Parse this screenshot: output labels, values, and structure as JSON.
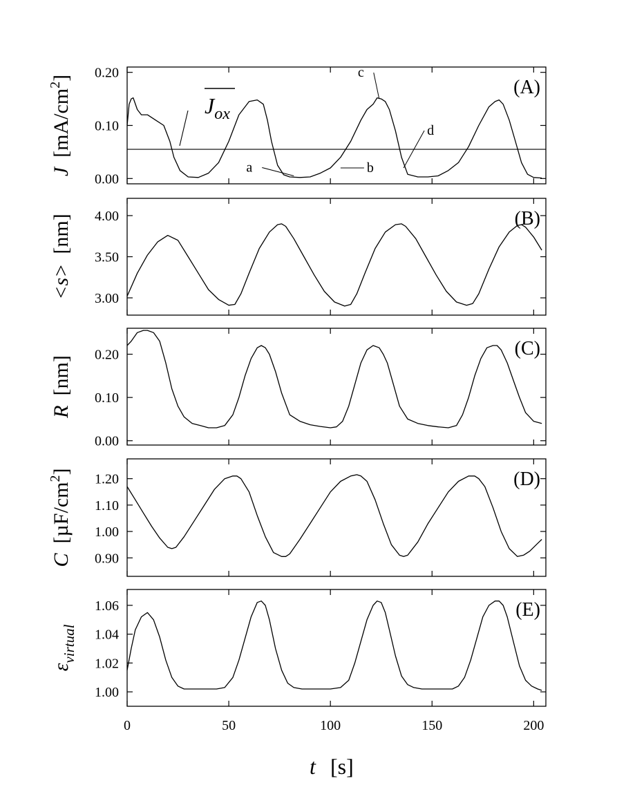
{
  "chart_data": [
    {
      "type": "line",
      "panel_label": "(A)",
      "ylabel_symbol": "J",
      "ylabel_unit": "[mA/cm",
      "ylabel_sup": "2",
      "ylabel_close": "]",
      "ylim": [
        -0.01,
        0.21
      ],
      "yticks": [
        0.0,
        0.1,
        0.2
      ],
      "ytick_labels": [
        "0.00",
        "0.10",
        "0.20"
      ],
      "reference_line": {
        "y": 0.055,
        "label_main": "J",
        "label_sub": "ox"
      },
      "annotations": [
        {
          "text": "a",
          "x": 82,
          "y": 0.005
        },
        {
          "text": "b",
          "x": 105,
          "y": 0.02
        },
        {
          "text": "c",
          "x": 124,
          "y": 0.15
        },
        {
          "text": "d",
          "x": 136,
          "y": 0.02
        }
      ],
      "series": [
        {
          "x": [
            0,
            1,
            2,
            3,
            5,
            7,
            10,
            14,
            18,
            21,
            23,
            26,
            30,
            35,
            40,
            45,
            50,
            55,
            60,
            64,
            67,
            69,
            71,
            74,
            77,
            80,
            85,
            90,
            95,
            100,
            105,
            110,
            115,
            118,
            121,
            123,
            125,
            127,
            129,
            132,
            135,
            138,
            143,
            148,
            153,
            158,
            163,
            168,
            173,
            178,
            181,
            183,
            185,
            188,
            191,
            194,
            197,
            200,
            204
          ],
          "y": [
            0.1,
            0.14,
            0.15,
            0.152,
            0.13,
            0.12,
            0.12,
            0.11,
            0.1,
            0.07,
            0.04,
            0.015,
            0.003,
            0.002,
            0.01,
            0.03,
            0.07,
            0.12,
            0.145,
            0.148,
            0.14,
            0.11,
            0.07,
            0.025,
            0.007,
            0.003,
            0.002,
            0.003,
            0.01,
            0.02,
            0.04,
            0.07,
            0.11,
            0.13,
            0.14,
            0.152,
            0.15,
            0.145,
            0.13,
            0.09,
            0.04,
            0.008,
            0.003,
            0.003,
            0.005,
            0.015,
            0.03,
            0.06,
            0.1,
            0.135,
            0.145,
            0.148,
            0.14,
            0.11,
            0.07,
            0.03,
            0.008,
            0.002,
            0.001
          ]
        }
      ]
    },
    {
      "type": "line",
      "panel_label": "(B)",
      "ylabel_symbol": "<s>",
      "ylabel_unit": "[nm]",
      "ylim": [
        2.79,
        4.21
      ],
      "yticks": [
        3.0,
        3.5,
        4.0
      ],
      "ytick_labels": [
        "3.00",
        "3.50",
        "4.00"
      ],
      "series": [
        {
          "x": [
            0,
            5,
            10,
            15,
            20,
            25,
            30,
            35,
            40,
            45,
            50,
            53,
            56,
            60,
            65,
            70,
            74,
            76,
            78,
            82,
            87,
            92,
            97,
            102,
            107,
            110,
            113,
            117,
            122,
            127,
            132,
            135,
            137,
            142,
            147,
            152,
            157,
            162,
            167,
            170,
            173,
            178,
            183,
            188,
            192,
            194,
            196,
            200,
            204
          ],
          "y": [
            3.02,
            3.3,
            3.52,
            3.68,
            3.76,
            3.7,
            3.5,
            3.3,
            3.1,
            2.98,
            2.91,
            2.92,
            3.05,
            3.3,
            3.6,
            3.8,
            3.89,
            3.9,
            3.87,
            3.72,
            3.5,
            3.28,
            3.08,
            2.95,
            2.9,
            2.92,
            3.05,
            3.3,
            3.6,
            3.8,
            3.89,
            3.9,
            3.87,
            3.72,
            3.5,
            3.28,
            3.08,
            2.95,
            2.91,
            2.93,
            3.05,
            3.35,
            3.62,
            3.8,
            3.88,
            3.89,
            3.86,
            3.74,
            3.58
          ]
        }
      ]
    },
    {
      "type": "line",
      "panel_label": "(C)",
      "ylabel_symbol": "R",
      "ylabel_unit": "[nm]",
      "ylim": [
        -0.01,
        0.26
      ],
      "yticks": [
        0.0,
        0.1,
        0.2
      ],
      "ytick_labels": [
        "0.00",
        "0.10",
        "0.20"
      ],
      "series": [
        {
          "x": [
            0,
            2,
            5,
            8,
            10,
            13,
            16,
            19,
            22,
            25,
            28,
            32,
            36,
            40,
            44,
            48,
            52,
            55,
            58,
            61,
            64,
            66,
            68,
            70,
            73,
            76,
            80,
            85,
            90,
            95,
            100,
            103,
            106,
            109,
            112,
            115,
            118,
            121,
            124,
            126,
            128,
            131,
            134,
            138,
            143,
            148,
            153,
            158,
            162,
            165,
            168,
            171,
            174,
            177,
            180,
            182,
            184,
            187,
            190,
            193,
            196,
            200,
            204
          ],
          "y": [
            0.22,
            0.23,
            0.25,
            0.255,
            0.255,
            0.25,
            0.23,
            0.18,
            0.12,
            0.08,
            0.055,
            0.04,
            0.035,
            0.03,
            0.03,
            0.035,
            0.06,
            0.1,
            0.15,
            0.19,
            0.215,
            0.22,
            0.215,
            0.2,
            0.16,
            0.11,
            0.06,
            0.045,
            0.037,
            0.033,
            0.03,
            0.032,
            0.045,
            0.08,
            0.13,
            0.18,
            0.21,
            0.22,
            0.215,
            0.2,
            0.18,
            0.13,
            0.08,
            0.05,
            0.04,
            0.035,
            0.032,
            0.03,
            0.035,
            0.06,
            0.1,
            0.15,
            0.19,
            0.215,
            0.22,
            0.22,
            0.21,
            0.18,
            0.14,
            0.1,
            0.065,
            0.045,
            0.04
          ]
        }
      ]
    },
    {
      "type": "line",
      "panel_label": "(D)",
      "ylabel_symbol": "C",
      "ylabel_unit": "[µF/cm",
      "ylabel_sup": "2",
      "ylabel_close": "]",
      "ylim": [
        0.83,
        1.275
      ],
      "yticks": [
        0.9,
        1.0,
        1.1,
        1.2
      ],
      "ytick_labels": [
        "0.90",
        "1.00",
        "1.10",
        "1.20"
      ],
      "series": [
        {
          "x": [
            0,
            4,
            8,
            12,
            16,
            20,
            22,
            24,
            28,
            33,
            38,
            43,
            48,
            52,
            54,
            56,
            60,
            64,
            68,
            72,
            76,
            78,
            80,
            85,
            90,
            95,
            100,
            105,
            110,
            113,
            115,
            118,
            122,
            126,
            130,
            134,
            136,
            138,
            143,
            148,
            153,
            158,
            163,
            168,
            171,
            173,
            176,
            180,
            184,
            188,
            192,
            195,
            198,
            202,
            204
          ],
          "y": [
            1.17,
            1.12,
            1.07,
            1.02,
            0.975,
            0.94,
            0.935,
            0.94,
            0.98,
            1.04,
            1.1,
            1.16,
            1.2,
            1.21,
            1.21,
            1.2,
            1.15,
            1.06,
            0.98,
            0.92,
            0.905,
            0.905,
            0.915,
            0.97,
            1.03,
            1.09,
            1.15,
            1.19,
            1.21,
            1.215,
            1.21,
            1.19,
            1.12,
            1.03,
            0.95,
            0.91,
            0.905,
            0.91,
            0.96,
            1.03,
            1.09,
            1.15,
            1.19,
            1.21,
            1.21,
            1.2,
            1.17,
            1.09,
            1.0,
            0.935,
            0.905,
            0.91,
            0.925,
            0.955,
            0.97
          ]
        }
      ]
    },
    {
      "type": "line",
      "panel_label": "(E)",
      "ylabel_symbol": "ε",
      "ylabel_sub": "virtual",
      "ylim": [
        0.99,
        1.071
      ],
      "yticks": [
        1.0,
        1.02,
        1.04,
        1.06
      ],
      "ytick_labels": [
        "1.00",
        "1.02",
        "1.04",
        "1.06"
      ],
      "series": [
        {
          "x": [
            0,
            2,
            4,
            7,
            10,
            13,
            16,
            19,
            22,
            25,
            28,
            32,
            36,
            40,
            44,
            48,
            52,
            55,
            58,
            61,
            64,
            66,
            68,
            70,
            73,
            76,
            79,
            82,
            86,
            90,
            95,
            100,
            105,
            109,
            112,
            115,
            118,
            121,
            123,
            125,
            127,
            129,
            132,
            135,
            138,
            141,
            145,
            150,
            155,
            160,
            163,
            166,
            169,
            172,
            175,
            178,
            181,
            183,
            185,
            187,
            190,
            193,
            196,
            199,
            202,
            204
          ],
          "y": [
            1.015,
            1.03,
            1.043,
            1.052,
            1.055,
            1.05,
            1.038,
            1.022,
            1.01,
            1.004,
            1.002,
            1.002,
            1.002,
            1.002,
            1.002,
            1.003,
            1.01,
            1.022,
            1.037,
            1.052,
            1.062,
            1.063,
            1.06,
            1.05,
            1.03,
            1.015,
            1.006,
            1.003,
            1.002,
            1.002,
            1.002,
            1.002,
            1.003,
            1.008,
            1.02,
            1.035,
            1.05,
            1.06,
            1.063,
            1.062,
            1.055,
            1.043,
            1.025,
            1.011,
            1.005,
            1.003,
            1.002,
            1.002,
            1.002,
            1.002,
            1.004,
            1.01,
            1.022,
            1.037,
            1.052,
            1.06,
            1.063,
            1.063,
            1.06,
            1.052,
            1.035,
            1.018,
            1.008,
            1.004,
            1.002,
            1.001
          ]
        }
      ]
    }
  ],
  "x_axis": {
    "xlim": [
      0,
      206
    ],
    "ticks": [
      0,
      50,
      100,
      150,
      200
    ],
    "tick_labels": [
      "0",
      "50",
      "100",
      "150",
      "200"
    ],
    "label_symbol": "t",
    "label_unit": "[s]"
  }
}
